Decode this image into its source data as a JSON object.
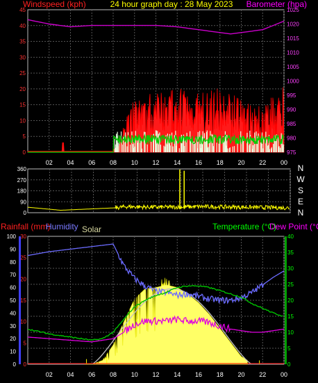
{
  "title": "24 hour graph day : 28 May 2023",
  "colors": {
    "windspeed": "#ff0000",
    "gust_fill": "#ff1a1a",
    "avg_wind": "#00cc00",
    "wind_fill": "#e8ffe0",
    "barometer": "#cc00cc",
    "direction": "#ffff00",
    "rainfall": "#ff0000",
    "humidity": "#6b6bff",
    "solar": "#ffff66",
    "solar_max": "#c0c0c0",
    "temperature": "#00c000",
    "dewpoint": "#e000e0",
    "axis_right_green": "#00ff00",
    "grid": "#555555"
  },
  "time_ticks": [
    "02",
    "04",
    "06",
    "08",
    "10",
    "12",
    "14",
    "16",
    "18",
    "20",
    "22",
    "00"
  ],
  "panel_wind": {
    "left_label": "Windspeed (kph)",
    "right_label": "Barometer (hpa)",
    "left_ticks": [
      "45",
      "40",
      "35",
      "30",
      "25",
      "20",
      "15",
      "10",
      "5",
      "0"
    ],
    "right_ticks": [
      "1025",
      "1020",
      "1015",
      "1010",
      "1005",
      "1000",
      "995",
      "990",
      "985",
      "980",
      "975"
    ]
  },
  "panel_dir": {
    "left_ticks": [
      "360",
      "270",
      "180",
      "90",
      "0"
    ],
    "compass": [
      "N",
      "W",
      "S",
      "E",
      "N"
    ]
  },
  "panel_climate": {
    "label_rain": "Rainfall (mm)",
    "label_humidity": "Humidity",
    "label_solar": "Solar",
    "label_temp": "Temperature (°C)",
    "label_dew": "Dew Point (°C)",
    "humidity_ticks": [
      "100",
      "90",
      "80",
      "70",
      "60",
      "50",
      "40",
      "30",
      "20",
      "10",
      "0"
    ],
    "rain_ticks": [
      "30",
      "25",
      "20",
      "15",
      "10",
      "5",
      "0"
    ],
    "temp_ticks": [
      "40",
      "35",
      "30",
      "25",
      "20",
      "15",
      "10",
      "5",
      "0"
    ]
  },
  "chart_data": [
    {
      "type": "line",
      "x_hours": [
        0,
        2,
        4,
        6,
        8,
        10,
        12,
        14,
        16,
        18,
        19,
        20,
        22,
        24
      ],
      "series": [
        {
          "name": "Windspeed (kph)",
          "axis": "left",
          "values": [
            0,
            0,
            0,
            0,
            0,
            12,
            14,
            14,
            13,
            14,
            13,
            12,
            10,
            15
          ]
        },
        {
          "name": "Barometer (hpa)",
          "axis": "right",
          "values": [
            1021.5,
            1020,
            1019,
            1019.5,
            1019.5,
            1019.5,
            1019.5,
            1019,
            1018,
            1017,
            1016.5,
            1017,
            1018,
            1021
          ]
        }
      ],
      "ylim_left": [
        0,
        45
      ],
      "ylim_right": [
        975,
        1025
      ],
      "title": "24 hour graph day : 28 May 2023",
      "ylabel": "Windspeed (kph)",
      "y2label": "Barometer (hpa)"
    },
    {
      "type": "line",
      "x_hours": [
        0,
        3,
        8,
        9,
        12,
        16,
        20,
        24
      ],
      "series": [
        {
          "name": "Direction",
          "values": [
            45,
            20,
            40,
            50,
            45,
            50,
            45,
            40
          ]
        }
      ],
      "ylim": [
        0,
        360
      ]
    },
    {
      "type": "line",
      "x_hours": [
        0,
        2,
        4,
        6,
        7,
        8,
        9,
        10,
        11,
        12,
        13,
        14,
        15,
        16,
        17,
        18,
        19,
        20,
        21,
        22,
        23,
        24
      ],
      "series": [
        {
          "name": "Humidity",
          "axis": "humidity",
          "values": [
            85,
            88,
            90,
            92,
            93,
            94,
            77,
            67,
            61,
            57,
            56,
            54,
            55,
            53,
            51,
            50,
            50,
            52,
            56,
            62,
            68,
            73
          ]
        },
        {
          "name": "Temperature (°C)",
          "axis": "temp",
          "values": [
            11,
            9.5,
            8.5,
            7.5,
            8,
            10,
            14,
            18,
            20,
            21.5,
            22.5,
            24,
            24.5,
            24.5,
            24,
            23,
            22,
            21,
            19,
            17.5,
            16,
            15
          ]
        },
        {
          "name": "Dew Point (°C)",
          "axis": "temp",
          "values": [
            8.5,
            8,
            7.5,
            7,
            7.5,
            8,
            10,
            12.5,
            13.5,
            13.5,
            13.5,
            14,
            13.5,
            13.5,
            13,
            12,
            11,
            10.5,
            10,
            10,
            10.5,
            11
          ]
        },
        {
          "name": "Solar",
          "axis": "humidity_scale_solar",
          "values": [
            0,
            0,
            0,
            0,
            3,
            15,
            33,
            51,
            59,
            60,
            62,
            60,
            55,
            48,
            39,
            28,
            17,
            6,
            1,
            0,
            0,
            0
          ]
        }
      ],
      "ylim_humidity": [
        0,
        100
      ],
      "ylim_rain": [
        0,
        30
      ],
      "ylim_temp": [
        0,
        40
      ]
    }
  ]
}
